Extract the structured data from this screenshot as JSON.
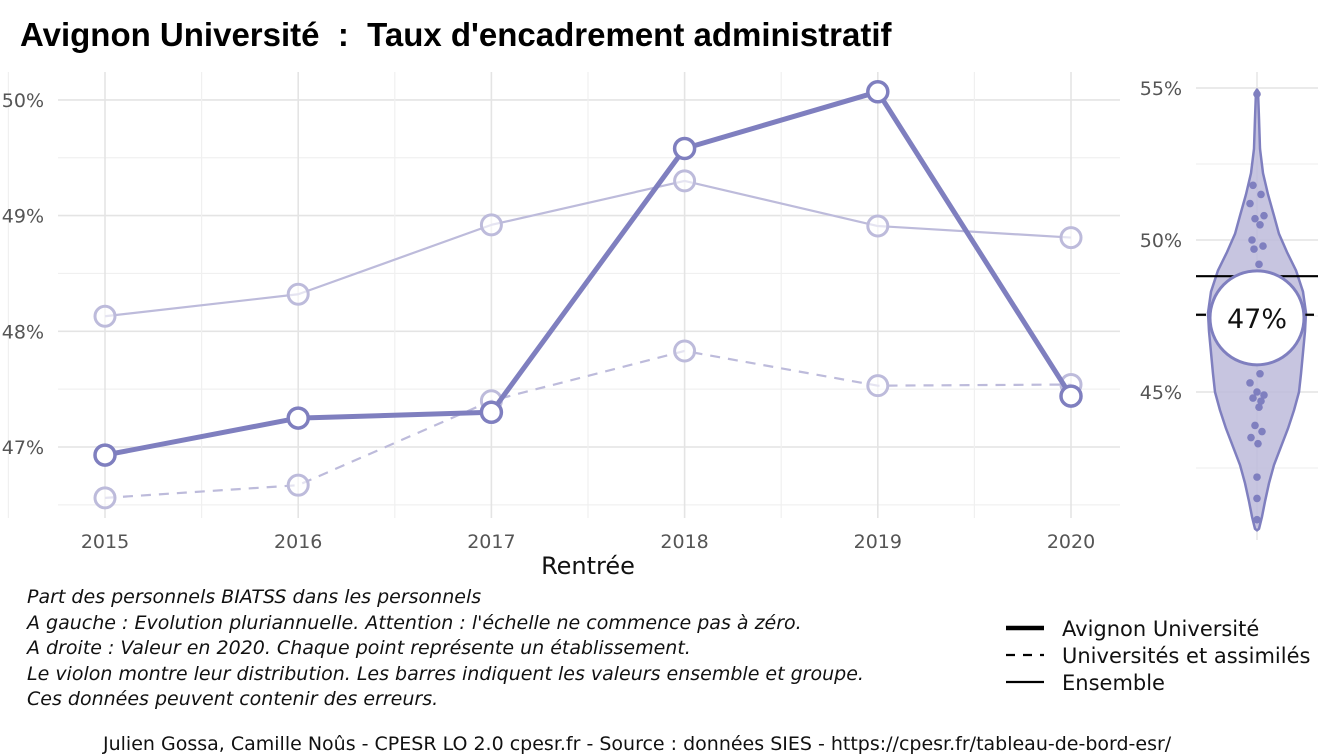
{
  "title": "Avignon Université  :  Taux d'encadrement administratif",
  "notes": [
    "Part des personnels BIATSS dans les personnels",
    "A gauche : Evolution pluriannuelle. Attention : l'échelle ne commence pas à zéro.",
    "A droite : Valeur en 2020. Chaque point représente un établissement.",
    "Le violon montre leur distribution. Les barres indiquent les valeurs ensemble et groupe.",
    "Ces données peuvent contenir des erreurs."
  ],
  "caption": "Julien Gossa, Camille Noûs - CPESR LO 2.0 cpesr.fr - Source : données SIES - https://cpesr.fr/tableau-de-bord-esr/",
  "colors": {
    "accent": "#7f7fbf",
    "accent_light": "#bdbbdb",
    "black": "#000000"
  },
  "legend": [
    {
      "label": "Avignon Université",
      "style": "thick"
    },
    {
      "label": "Universités et assimilés",
      "style": "dashed"
    },
    {
      "label": "Ensemble",
      "style": "thin"
    }
  ],
  "chart_data": [
    {
      "type": "line",
      "xlabel": "Rentrée",
      "ylabel": "",
      "x": [
        2015,
        2016,
        2017,
        2018,
        2019,
        2020
      ],
      "ylim": [
        46.5,
        50.3
      ],
      "yticks": [
        47,
        48,
        49,
        50
      ],
      "ytick_labels": [
        "47%",
        "48%",
        "49%",
        "50%"
      ],
      "grid": true,
      "series": [
        {
          "name": "Avignon Université",
          "values": [
            46.93,
            47.25,
            47.3,
            49.58,
            50.07,
            47.44
          ]
        },
        {
          "name": "Universités et assimilés",
          "values": [
            46.56,
            46.67,
            47.4,
            47.83,
            47.53,
            47.54
          ]
        },
        {
          "name": "Ensemble",
          "values": [
            48.13,
            48.32,
            48.92,
            49.3,
            48.91,
            48.81
          ]
        }
      ]
    },
    {
      "type": "scatter",
      "subtype": "violin",
      "year": 2020,
      "ylim": [
        40.6,
        55.6
      ],
      "yticks": [
        45,
        50,
        55
      ],
      "ytick_labels": [
        "45%",
        "50%",
        "55%"
      ],
      "highlight_label": "47%",
      "highlight_value": 47.44,
      "ensemble_value": 48.81,
      "group_value": 47.54,
      "points": [
        54.8,
        51.8,
        51.5,
        51.2,
        50.8,
        50.7,
        50.5,
        50.0,
        49.8,
        49.7,
        49.2,
        48.8,
        48.5,
        48.1,
        47.9,
        47.6,
        47.4,
        47.1,
        46.7,
        46.3,
        45.6,
        45.3,
        45.0,
        44.9,
        44.8,
        44.7,
        44.5,
        43.9,
        43.7,
        43.5,
        43.3,
        42.2,
        41.5,
        40.8
      ]
    }
  ]
}
